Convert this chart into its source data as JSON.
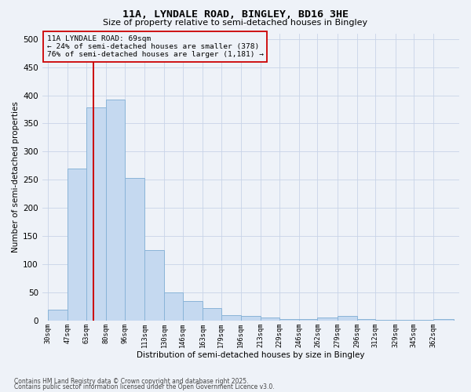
{
  "title1": "11A, LYNDALE ROAD, BINGLEY, BD16 3HE",
  "title2": "Size of property relative to semi-detached houses in Bingley",
  "xlabel": "Distribution of semi-detached houses by size in Bingley",
  "ylabel": "Number of semi-detached properties",
  "bin_edges": [
    30,
    47,
    63,
    80,
    96,
    113,
    130,
    146,
    163,
    179,
    196,
    213,
    229,
    246,
    262,
    279,
    296,
    312,
    329,
    345,
    362,
    379
  ],
  "counts": [
    20,
    270,
    378,
    393,
    253,
    125,
    50,
    35,
    22,
    10,
    8,
    5,
    3,
    3,
    5,
    8,
    3,
    2,
    2,
    2,
    3
  ],
  "bar_facecolor": "#c5d9f0",
  "bar_edgecolor": "#8ab4d8",
  "grid_color": "#c8d4e8",
  "vline_x": 69,
  "vline_color": "#cc0000",
  "annotation_text": "11A LYNDALE ROAD: 69sqm\n← 24% of semi-detached houses are smaller (378)\n76% of semi-detached houses are larger (1,181) →",
  "annotation_box_edgecolor": "#cc0000",
  "ylim": [
    0,
    510
  ],
  "yticks": [
    0,
    50,
    100,
    150,
    200,
    250,
    300,
    350,
    400,
    450,
    500
  ],
  "tick_labels": [
    "30sqm",
    "47sqm",
    "63sqm",
    "80sqm",
    "96sqm",
    "113sqm",
    "130sqm",
    "146sqm",
    "163sqm",
    "179sqm",
    "196sqm",
    "213sqm",
    "229sqm",
    "246sqm",
    "262sqm",
    "279sqm",
    "296sqm",
    "312sqm",
    "329sqm",
    "345sqm",
    "362sqm"
  ],
  "footer1": "Contains HM Land Registry data © Crown copyright and database right 2025.",
  "footer2": "Contains public sector information licensed under the Open Government Licence v3.0.",
  "bg_color": "#eef2f8"
}
